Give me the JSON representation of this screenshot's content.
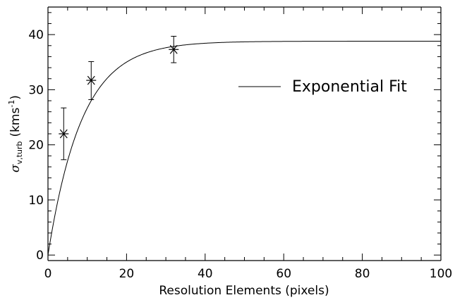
{
  "chart_data": {
    "type": "scatter",
    "xlabel": "Resolution Elements (pixels)",
    "ylabel_symbol": "σ",
    "ylabel_sub": "v,turb",
    "ylabel_units_pre": "(kms",
    "ylabel_units_exp": "-1",
    "ylabel_units_post": ")",
    "xlim": [
      0,
      100
    ],
    "ylim": [
      -1,
      45
    ],
    "x_ticks": [
      0,
      20,
      40,
      60,
      80,
      100
    ],
    "y_ticks": [
      0,
      10,
      20,
      30,
      40
    ],
    "grid": false,
    "legend_position": "right-middle",
    "series": [
      {
        "name": "Exponential Fit",
        "kind": "line",
        "model": {
          "asymptote": 38.8,
          "scale": 8.6
        }
      },
      {
        "kind": "points",
        "marker": "asterisk",
        "points": [
          {
            "x": 4,
            "y": 22.0,
            "err_low": 17.3,
            "err_high": 26.7
          },
          {
            "x": 11,
            "y": 31.7,
            "err_low": 28.2,
            "err_high": 35.1
          },
          {
            "x": 32,
            "y": 37.3,
            "err_low": 34.9,
            "err_high": 39.7
          }
        ]
      }
    ]
  }
}
